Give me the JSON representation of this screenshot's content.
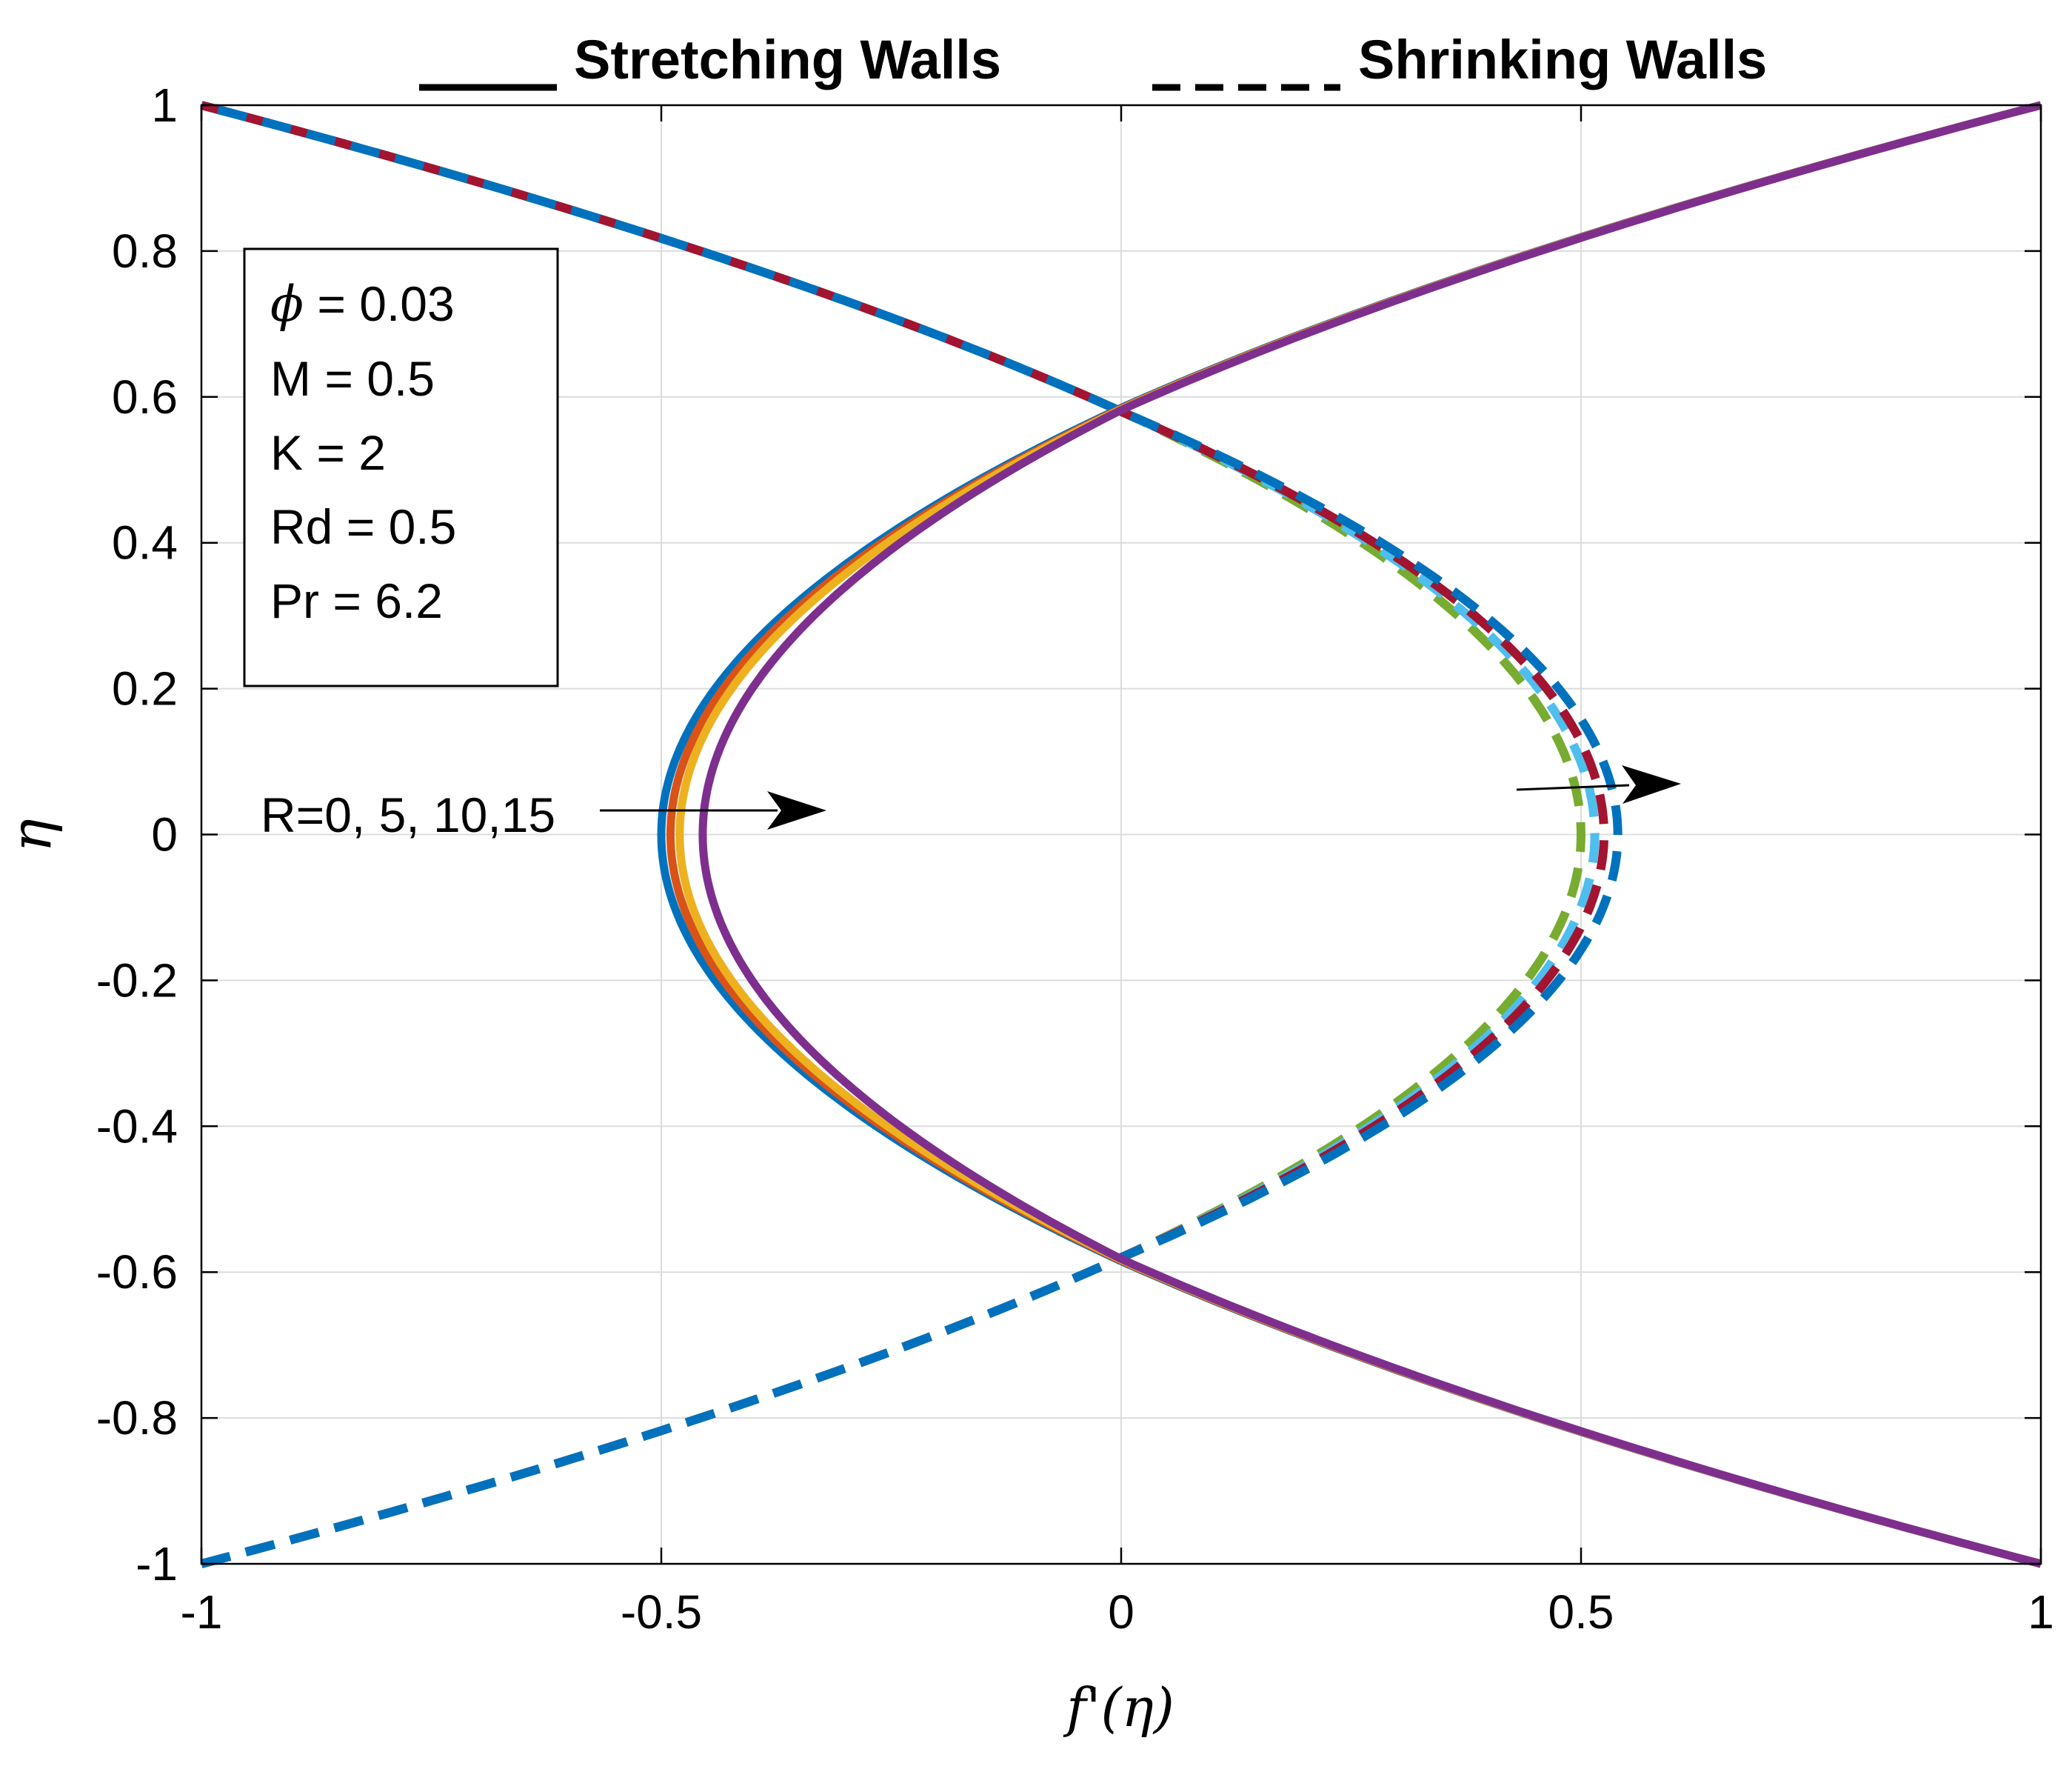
{
  "chart_data": {
    "type": "line",
    "xlabel": "f'(η)",
    "ylabel": "η",
    "xlim": [
      -1,
      1
    ],
    "ylim": [
      -1,
      1
    ],
    "grid": true,
    "x_ticks": [
      -1,
      -0.5,
      0,
      0.5,
      1
    ],
    "x_tick_labels": [
      "-1",
      "-0.5",
      "0",
      "0.5",
      "1"
    ],
    "y_ticks": [
      1,
      0.8,
      0.6,
      0.4,
      0.2,
      0,
      -0.2,
      -0.4,
      -0.6,
      -0.8,
      -1
    ],
    "y_tick_labels": [
      "1",
      "0.8",
      "0.6",
      "0.4",
      "0.2",
      "0",
      "-0.2",
      "-0.4",
      "-0.6",
      "-0.8",
      "-1"
    ],
    "legend": {
      "solid_label": "Stretching Walls",
      "dashed_label": "Shrinking Walls",
      "placement": "top"
    },
    "param_box": {
      "lines": [
        {
          "symbol": "ϕ",
          "text": " = 0.03"
        },
        {
          "symbol": "",
          "text": "M = 0.5"
        },
        {
          "symbol": "",
          "text": "K = 2"
        },
        {
          "symbol": "",
          "text": "Rd = 0.5"
        },
        {
          "symbol": "",
          "text": "Pr = 6.2"
        }
      ],
      "placement": "top-left"
    },
    "annotation": {
      "text": "R=0, 5, 10,15",
      "note": "arrows indicate increasing R"
    },
    "series": [
      {
        "name": "Stretching R=0",
        "style": "solid",
        "color": "#0072BD",
        "vertex_x": -0.5,
        "eta_cross": 0.585
      },
      {
        "name": "Stretching R=5",
        "style": "solid",
        "color": "#D95319",
        "vertex_x": -0.49,
        "eta_cross": 0.584
      },
      {
        "name": "Stretching R=10",
        "style": "solid",
        "color": "#EDB120",
        "vertex_x": -0.48,
        "eta_cross": 0.583
      },
      {
        "name": "Stretching R=15",
        "style": "solid",
        "color": "#7E2F8E",
        "vertex_x": -0.455,
        "eta_cross": 0.582
      },
      {
        "name": "Shrinking R=0",
        "style": "dashed",
        "color": "#77AC30",
        "vertex_x": 0.5,
        "eta_cross": 0.58
      },
      {
        "name": "Shrinking R=5",
        "style": "dashed",
        "color": "#4DBEEE",
        "vertex_x": 0.515,
        "eta_cross": 0.58
      },
      {
        "name": "Shrinking R=10",
        "style": "dashed",
        "color": "#A2142F",
        "vertex_x": 0.525,
        "eta_cross": 0.58
      },
      {
        "name": "Shrinking R=15",
        "style": "dashed",
        "color": "#0072BD",
        "vertex_x": 0.54,
        "eta_cross": 0.58
      }
    ]
  }
}
